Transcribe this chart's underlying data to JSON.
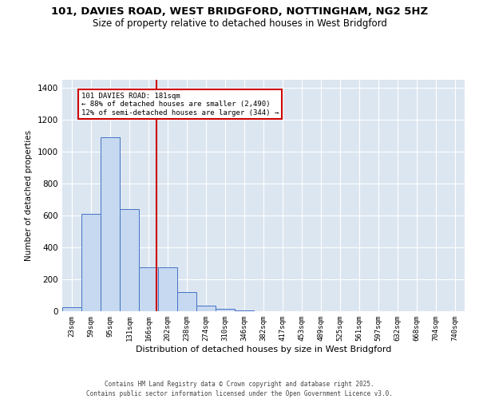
{
  "title_line1": "101, DAVIES ROAD, WEST BRIDGFORD, NOTTINGHAM, NG2 5HZ",
  "title_line2": "Size of property relative to detached houses in West Bridgford",
  "xlabel": "Distribution of detached houses by size in West Bridgford",
  "ylabel": "Number of detached properties",
  "categories": [
    "23sqm",
    "59sqm",
    "95sqm",
    "131sqm",
    "166sqm",
    "202sqm",
    "238sqm",
    "274sqm",
    "310sqm",
    "346sqm",
    "382sqm",
    "417sqm",
    "453sqm",
    "489sqm",
    "525sqm",
    "561sqm",
    "597sqm",
    "632sqm",
    "668sqm",
    "704sqm",
    "740sqm"
  ],
  "values": [
    25,
    610,
    1090,
    640,
    275,
    275,
    120,
    35,
    15,
    5,
    0,
    0,
    0,
    0,
    0,
    0,
    0,
    0,
    0,
    0,
    0
  ],
  "bar_color": "#c6d9f0",
  "bar_edge_color": "#4472c4",
  "background_color": "#dce6f1",
  "grid_color": "#ffffff",
  "vline_x": 4.42,
  "vline_color": "#cc0000",
  "annotation_text": "101 DAVIES ROAD: 181sqm\n← 88% of detached houses are smaller (2,490)\n12% of semi-detached houses are larger (344) →",
  "annotation_box_color": "#cc0000",
  "ylim": [
    0,
    1450
  ],
  "yticks": [
    0,
    200,
    400,
    600,
    800,
    1000,
    1200,
    1400
  ],
  "footer_line1": "Contains HM Land Registry data © Crown copyright and database right 2025.",
  "footer_line2": "Contains public sector information licensed under the Open Government Licence v3.0."
}
